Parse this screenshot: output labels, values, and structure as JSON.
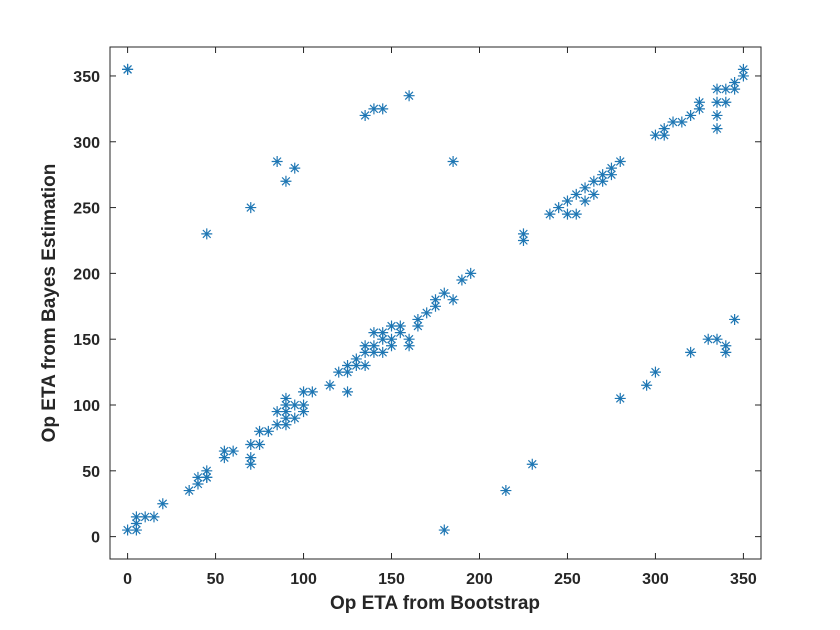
{
  "chart_data": {
    "type": "scatter",
    "xlabel": "Op ETA from Bootstrap",
    "ylabel": "Op ETA from Bayes Estimation",
    "xlim": [
      -10,
      360
    ],
    "ylim": [
      -17,
      372
    ],
    "xticks": [
      0,
      50,
      100,
      150,
      200,
      250,
      300,
      350
    ],
    "yticks": [
      0,
      50,
      100,
      150,
      200,
      250,
      300,
      350
    ],
    "grid": false,
    "marker": "asterisk",
    "marker_color": "#1f77b4",
    "series": [
      {
        "x": [
          0,
          0,
          5,
          5,
          5,
          10,
          15,
          20,
          35,
          40,
          40,
          45,
          45,
          45,
          55,
          55,
          60,
          70,
          70,
          70,
          75,
          75,
          80,
          85,
          85,
          90,
          90,
          90,
          90,
          90,
          95,
          95,
          100,
          100,
          100,
          105,
          115,
          120,
          125,
          125,
          125,
          130,
          130,
          135,
          135,
          135,
          140,
          140,
          140,
          145,
          145,
          145,
          150,
          150,
          150,
          155,
          155,
          160,
          160,
          165,
          165,
          170,
          175,
          175,
          180,
          185,
          190,
          195,
          225,
          225,
          240,
          245,
          250,
          250,
          255,
          255,
          260,
          260,
          265,
          265,
          270,
          270,
          275,
          275,
          280,
          300,
          305,
          305,
          310,
          315,
          320,
          325,
          325,
          335,
          335,
          335,
          335,
          340,
          340,
          345,
          345,
          350,
          350,
          0,
          45,
          70,
          85,
          90,
          95,
          135,
          140,
          145,
          160,
          185,
          180,
          215,
          230,
          280,
          295,
          300,
          320,
          330,
          335,
          340,
          340,
          345
        ],
        "y": [
          355,
          5,
          5,
          10,
          15,
          15,
          15,
          25,
          35,
          40,
          45,
          45,
          50,
          45,
          60,
          65,
          65,
          55,
          60,
          70,
          70,
          80,
          80,
          85,
          95,
          85,
          90,
          95,
          100,
          105,
          90,
          100,
          95,
          100,
          110,
          110,
          115,
          125,
          110,
          125,
          130,
          130,
          135,
          130,
          140,
          145,
          140,
          145,
          155,
          140,
          150,
          155,
          145,
          150,
          160,
          155,
          160,
          145,
          150,
          160,
          165,
          170,
          175,
          180,
          185,
          180,
          195,
          200,
          225,
          230,
          245,
          250,
          245,
          255,
          245,
          260,
          255,
          265,
          260,
          270,
          270,
          275,
          275,
          280,
          285,
          305,
          305,
          310,
          315,
          315,
          320,
          325,
          330,
          310,
          320,
          330,
          340,
          330,
          340,
          340,
          345,
          350,
          355,
          355,
          230,
          250,
          285,
          270,
          280,
          320,
          325,
          325,
          335,
          285,
          5,
          35,
          55,
          105,
          115,
          125,
          140,
          150,
          150,
          145,
          140,
          165
        ]
      }
    ]
  }
}
